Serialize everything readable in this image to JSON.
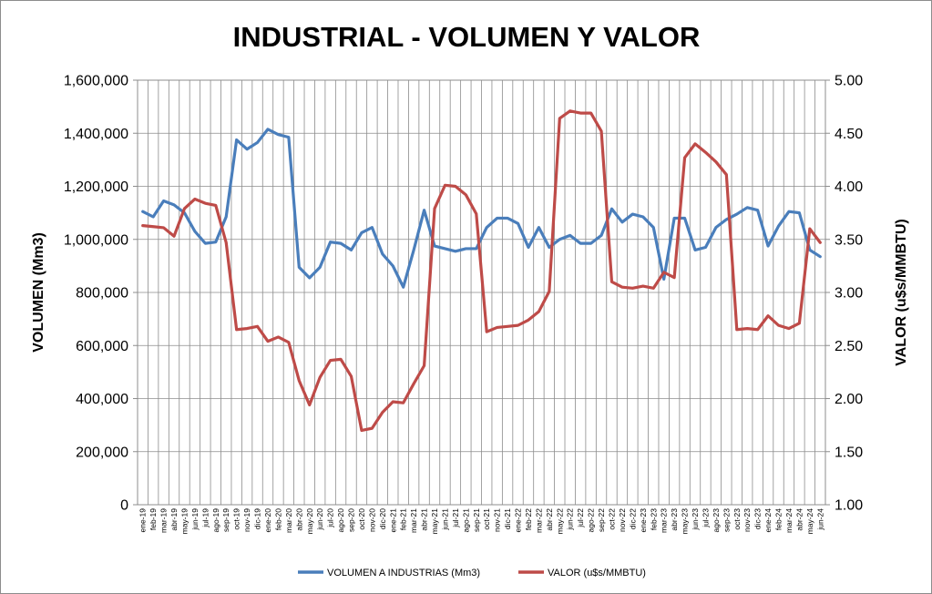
{
  "chart_data": {
    "type": "line",
    "title": "INDUSTRIAL - VOLUMEN Y VALOR",
    "ylabel": "VOLUMEN (Mm3)",
    "y2label": "VALOR (u$s/MMBTU)",
    "ylim": [
      0,
      1600000
    ],
    "y2lim": [
      1.0,
      5.0
    ],
    "yticks": [
      "0",
      "200,000",
      "400,000",
      "600,000",
      "800,000",
      "1,000,000",
      "1,200,000",
      "1,400,000",
      "1,600,000"
    ],
    "y2ticks": [
      "1.00",
      "1.50",
      "2.00",
      "2.50",
      "3.00",
      "3.50",
      "4.00",
      "4.50",
      "5.00"
    ],
    "grid": true,
    "legend_position": "bottom",
    "categories": [
      "ene-19",
      "feb-19",
      "mar-19",
      "abr-19",
      "may-19",
      "jun-19",
      "jul-19",
      "ago-19",
      "sep-19",
      "oct-19",
      "nov-19",
      "dic-19",
      "ene-20",
      "feb-20",
      "mar-20",
      "abr-20",
      "may-20",
      "jun-20",
      "jul-20",
      "ago-20",
      "sep-20",
      "oct-20",
      "nov-20",
      "dic-20",
      "ene-21",
      "feb-21",
      "mar-21",
      "abr-21",
      "may-21",
      "jun-21",
      "jul-21",
      "ago-21",
      "sep-21",
      "oct-21",
      "nov-21",
      "dic-21",
      "ene-22",
      "feb-22",
      "mar-22",
      "abr-22",
      "may-22",
      "jun-22",
      "jul-22",
      "ago-22",
      "sep-22",
      "oct-22",
      "nov-22",
      "dic-22",
      "ene-23",
      "feb-23",
      "mar-23",
      "abr-23",
      "may-23",
      "jun-23",
      "jul-23",
      "ago-23",
      "sep-23",
      "oct-23",
      "nov-23",
      "dic-23",
      "ene-24",
      "feb-24",
      "mar-24",
      "abr-24",
      "may-24",
      "jun-24"
    ],
    "series": [
      {
        "name": "VOLUMEN A INDUSTRIAS (Mm3)",
        "axis": "left",
        "color": "#4a7ebb",
        "values": [
          1105000,
          1085000,
          1145000,
          1130000,
          1100000,
          1030000,
          985000,
          990000,
          1085000,
          1375000,
          1340000,
          1365000,
          1415000,
          1395000,
          1385000,
          895000,
          855000,
          895000,
          990000,
          985000,
          960000,
          1025000,
          1045000,
          945000,
          900000,
          820000,
          960000,
          1110000,
          975000,
          965000,
          955000,
          965000,
          965000,
          1045000,
          1080000,
          1080000,
          1060000,
          970000,
          1045000,
          970000,
          1000000,
          1015000,
          985000,
          985000,
          1015000,
          1115000,
          1065000,
          1095000,
          1085000,
          1045000,
          850000,
          1080000,
          1080000,
          960000,
          970000,
          1045000,
          1075000,
          1095000,
          1120000,
          1110000,
          975000,
          1050000,
          1105000,
          1100000,
          960000,
          935000
        ]
      },
      {
        "name": "VALOR (u$s/MMBTU)",
        "axis": "right",
        "color": "#be4b48",
        "values": [
          3.63,
          3.62,
          3.61,
          3.53,
          3.79,
          3.88,
          3.84,
          3.82,
          3.47,
          2.65,
          2.66,
          2.68,
          2.54,
          2.58,
          2.53,
          2.17,
          1.94,
          2.2,
          2.36,
          2.37,
          2.21,
          1.7,
          1.72,
          1.87,
          1.97,
          1.96,
          2.14,
          2.31,
          3.79,
          4.01,
          4.0,
          3.92,
          3.74,
          2.63,
          2.67,
          2.68,
          2.69,
          2.74,
          2.82,
          3.01,
          4.64,
          4.71,
          4.69,
          4.69,
          4.52,
          3.1,
          3.05,
          3.04,
          3.06,
          3.04,
          3.19,
          3.14,
          4.27,
          4.4,
          4.32,
          4.23,
          4.11,
          2.65,
          2.66,
          2.65,
          2.78,
          2.69,
          2.66,
          2.71,
          3.6,
          3.47
        ]
      }
    ]
  }
}
